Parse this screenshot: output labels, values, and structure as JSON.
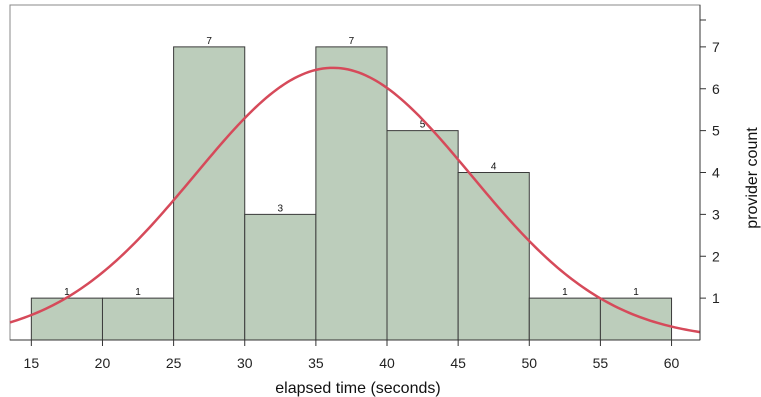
{
  "chart_data": {
    "type": "bar",
    "chart_kind": "histogram",
    "bins": [
      {
        "start": 15,
        "end": 20,
        "count": 1
      },
      {
        "start": 20,
        "end": 25,
        "count": 1
      },
      {
        "start": 25,
        "end": 30,
        "count": 7
      },
      {
        "start": 30,
        "end": 35,
        "count": 3
      },
      {
        "start": 35,
        "end": 40,
        "count": 7
      },
      {
        "start": 40,
        "end": 45,
        "count": 5
      },
      {
        "start": 45,
        "end": 50,
        "count": 4
      },
      {
        "start": 50,
        "end": 55,
        "count": 1
      },
      {
        "start": 55,
        "end": 60,
        "count": 1
      }
    ],
    "data_labels": [
      "1",
      "1",
      "7",
      "3",
      "7",
      "5",
      "4",
      "1",
      "1"
    ],
    "xlabel": "elapsed time (seconds)",
    "ylabel": "provider count",
    "xlim": [
      13.5,
      62
    ],
    "ylim": [
      0,
      8
    ],
    "x_ticks": [
      "15",
      "20",
      "25",
      "30",
      "35",
      "40",
      "45",
      "50",
      "55",
      "60"
    ],
    "y_ticks": [
      "1",
      "2",
      "3",
      "4",
      "5",
      "6",
      "7"
    ],
    "y_axis_side": "right",
    "grid": false,
    "legend": "none",
    "fitted_curve": {
      "type": "normal",
      "mean": 36.2,
      "sd": 9.7,
      "peak": 6.5
    },
    "colors": {
      "bar_fill": "#bccdbb",
      "bar_stroke": "#3a3a3a",
      "curve": "#d64a5a",
      "axis": "#333333"
    }
  }
}
